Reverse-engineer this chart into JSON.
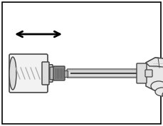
{
  "bg_color": "#ffffff",
  "border_color": "#000000",
  "gray_light": "#dddddd",
  "gray_mid": "#aaaaaa",
  "gray_dark": "#444444",
  "gray_connector": "#888888",
  "gray_vial": "#f2f2f2",
  "figsize": [
    2.29,
    1.77
  ],
  "dpi": 100
}
